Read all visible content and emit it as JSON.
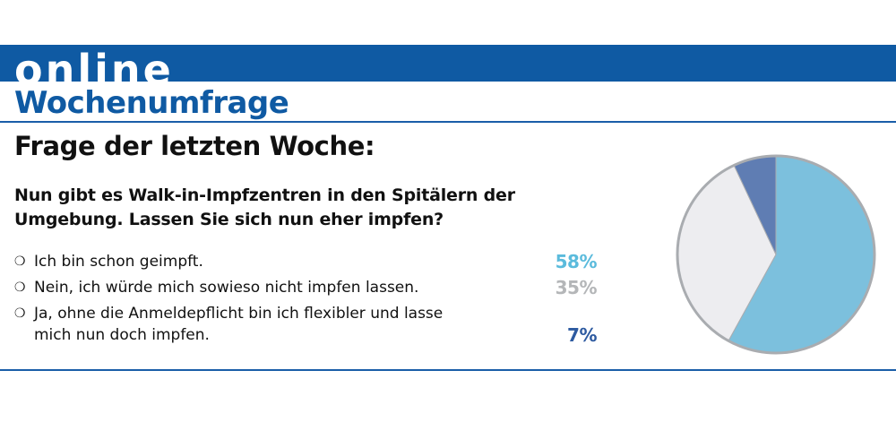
{
  "header": {
    "band_title": "online",
    "title": "Wochenumfrage"
  },
  "question_title": "Frage der letzten Woche:",
  "question": "Nun gibt es Walk-in-Impfzentren in den Spitälern der Umgebung. Lassen Sie sich nun eher impfen?",
  "bullet_glyph": "❍",
  "answers": [
    {
      "text": "Ich bin schon geimpft.",
      "percent": "58%",
      "color": "#5bbbdc"
    },
    {
      "text": "Nein, ich würde mich sowieso nicht impfen lassen.",
      "percent": "35%",
      "color": "#b4b6b8"
    },
    {
      "text": "Ja, ohne die Anmeldepflicht bin ich flexibler und lasse mich nun doch impfen.",
      "percent": "7%",
      "color": "#2d5aa0"
    }
  ],
  "chart_data": {
    "type": "pie",
    "categories": [
      "Ich bin schon geimpft.",
      "Nein, ich würde mich sowieso nicht impfen lassen.",
      "Ja, ohne die Anmeldepflicht bin ich flexibler und lasse mich nun doch impfen."
    ],
    "values": [
      58,
      35,
      7
    ],
    "slice_colors": [
      "#7cc0dd",
      "#ededf0",
      "#5f7db3"
    ],
    "outline_color": "#a9acb0",
    "legend": "left"
  }
}
